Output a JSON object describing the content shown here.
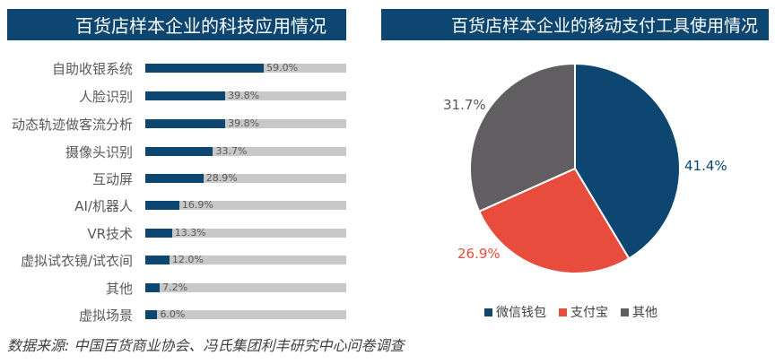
{
  "chart_data": [
    {
      "type": "bar",
      "orientation": "horizontal",
      "title": "百货店样本企业的科技应用情况",
      "categories": [
        "自助收银系统",
        "人脸识别",
        "动态轨迹做客流分析",
        "摄像头识别",
        "互动屏",
        "AI/机器人",
        "VR技术",
        "虚拟试衣镜/试衣间",
        "其他",
        "虚拟场景"
      ],
      "values": [
        59.0,
        39.8,
        39.8,
        33.7,
        28.9,
        16.9,
        13.3,
        12.0,
        7.2,
        6.0
      ],
      "labels": [
        "59.0%",
        "39.8%",
        "39.8%",
        "33.7%",
        "28.9%",
        "16.9%",
        "13.3%",
        "12.0%",
        "7.2%",
        "6.0%"
      ],
      "xlim": [
        0,
        100
      ],
      "colors": {
        "bar": "#0d4670",
        "track": "#c8c8c8"
      }
    },
    {
      "type": "pie",
      "title": "百货店样本企业的移动支付工具使用情况",
      "categories": [
        "微信钱包",
        "支付宝",
        "其他"
      ],
      "values": [
        41.4,
        26.9,
        31.7
      ],
      "labels": [
        "41.4%",
        "26.9%",
        "31.7%"
      ],
      "colors": [
        "#0d4670",
        "#e84c3d",
        "#605e61"
      ],
      "legend": "bottom"
    }
  ],
  "source": "数据来源: 中国百货商业协会、冯氏集团利丰研究中心问卷调查"
}
